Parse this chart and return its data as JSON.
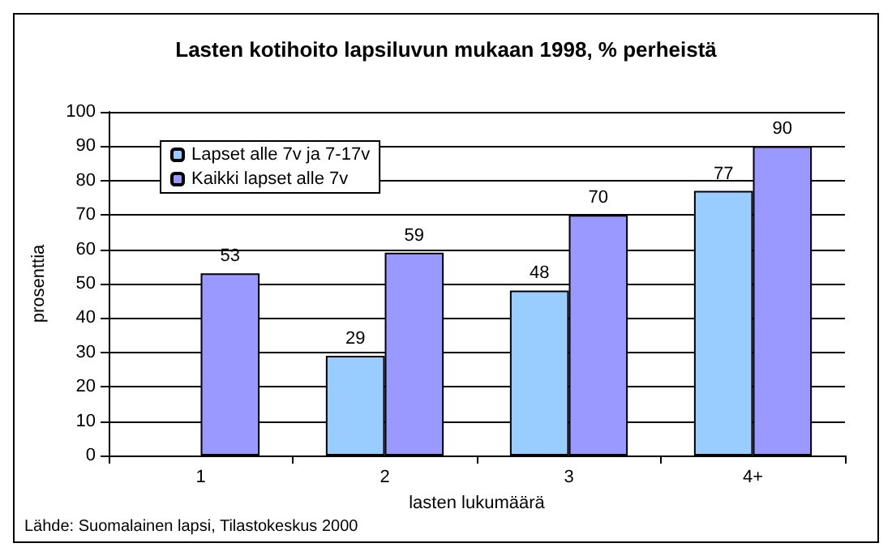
{
  "chart_data": {
    "type": "bar",
    "title": "Lasten kotihoito lapsiluvun mukaan 1998, % perheistä",
    "xlabel": "lasten lukumäärä",
    "ylabel": "prosenttia",
    "annotations": [
      "Lähde: Suomalainen lapsi, Tilastokeskus 2000"
    ],
    "categories": [
      "1",
      "2",
      "3",
      "4+"
    ],
    "series": [
      {
        "name": "Lapset alle 7v ja 7-17v",
        "color": "#99ccff",
        "values": [
          null,
          29,
          48,
          77
        ]
      },
      {
        "name": "Kaikki lapset alle 7v",
        "color": "#9999ff",
        "values": [
          53,
          59,
          70,
          90
        ]
      }
    ],
    "ylim": [
      0,
      100
    ],
    "yticks": [
      0,
      10,
      20,
      30,
      40,
      50,
      60,
      70,
      80,
      90,
      100
    ],
    "grid": "y",
    "legend": "top left",
    "data_labels": true
  }
}
